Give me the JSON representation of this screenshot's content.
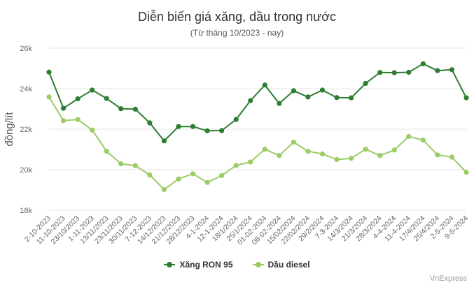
{
  "chart_data": {
    "type": "line",
    "title": "Diễn biến giá xăng, dầu trong nước",
    "subtitle": "(Từ tháng 10/2023 - nay)",
    "ylabel": "đồng/lít",
    "xlabel": "",
    "ylim": [
      18000,
      26000
    ],
    "y_ticks": [
      18000,
      20000,
      22000,
      24000,
      26000
    ],
    "y_tick_labels": [
      "18k",
      "20k",
      "22k",
      "24k",
      "26k"
    ],
    "grid": true,
    "legend_position": "bottom",
    "categories": [
      "2-10-2023",
      "11-10-2023",
      "23/10/2023",
      "1-11-2023",
      "13/11/2023",
      "23/11/2023",
      "30/11/2023",
      "7-12-2023",
      "14/12/2023",
      "21/12/2023",
      "28/12/2023",
      "4-1-2024",
      "12-1-2024",
      "18/1/2024",
      "25/1/2024",
      "01-02-2024",
      "08-02-2024",
      "15/02/2024",
      "22/02/2024",
      "29/2/2024",
      "7-3-2024",
      "14/3/2024",
      "21/3/2024",
      "28/3/2024",
      "4-4-2024",
      "11-4-2024",
      "17/4/2024",
      "25/4/2024",
      "2-5-2024",
      "9-5-2024"
    ],
    "series": [
      {
        "name": "Xăng RON 95",
        "color": "#2e7d32",
        "values": [
          24820,
          23030,
          23500,
          23930,
          23520,
          23010,
          22990,
          22310,
          21420,
          22130,
          22130,
          21920,
          21930,
          22480,
          23410,
          24180,
          23270,
          23900,
          23590,
          23930,
          23560,
          23550,
          24260,
          24800,
          24790,
          24810,
          25230,
          24890,
          24940,
          23550
        ]
      },
      {
        "name": "Dầu diesel",
        "color": "#9ccc65",
        "values": [
          23590,
          22420,
          22480,
          21960,
          20910,
          20290,
          20200,
          19740,
          19020,
          19540,
          19800,
          19370,
          19710,
          20210,
          20380,
          21010,
          20700,
          21360,
          20910,
          20780,
          20500,
          20560,
          21010,
          20700,
          20970,
          21640,
          21460,
          20730,
          20620,
          19870
        ]
      }
    ]
  },
  "credit": "VnExpress"
}
